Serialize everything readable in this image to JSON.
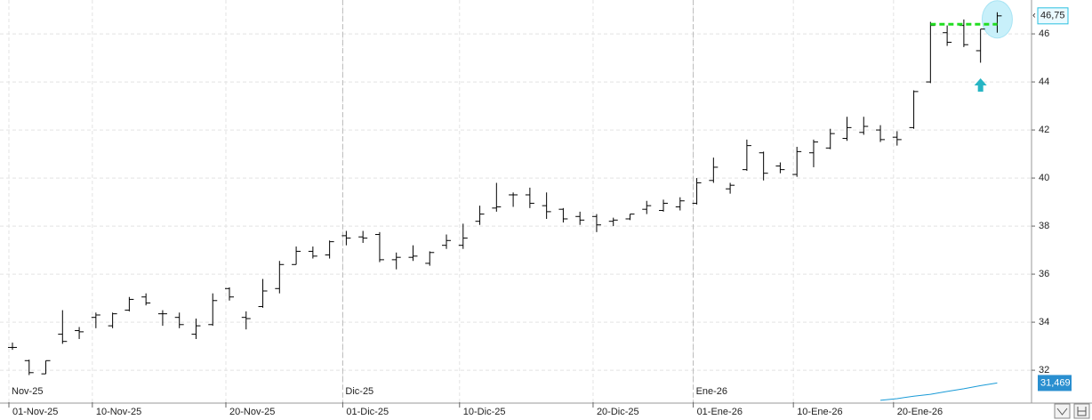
{
  "chart_data": {
    "type": "ohlc",
    "categories": [
      "01-Nov-25",
      null,
      null,
      null,
      null,
      "10-Nov-25",
      null,
      null,
      null,
      null,
      null,
      null,
      null,
      "20-Nov-25",
      null,
      null,
      null,
      null,
      null,
      null,
      "01-Dic-25",
      null,
      null,
      null,
      null,
      null,
      null,
      "10-Dic-25",
      null,
      null,
      null,
      null,
      null,
      null,
      null,
      "20-Dic-25",
      null,
      null,
      null,
      null,
      null,
      "01-Ene-26",
      null,
      null,
      null,
      null,
      null,
      "10-Ene-26",
      null,
      null,
      null,
      null,
      null,
      "20-Ene-26",
      null,
      null,
      null,
      null,
      null,
      null
    ],
    "month_categories": [
      "Nov-25",
      null,
      null,
      null,
      null,
      null,
      null,
      null,
      null,
      null,
      null,
      null,
      null,
      null,
      null,
      null,
      null,
      null,
      null,
      null,
      "Dic-25",
      null,
      null,
      null,
      null,
      null,
      null,
      null,
      null,
      null,
      null,
      null,
      null,
      null,
      null,
      null,
      null,
      null,
      null,
      null,
      null,
      "Ene-26",
      null,
      null,
      null,
      null,
      null,
      null,
      null,
      null,
      null,
      null,
      null,
      null,
      null,
      null,
      null,
      null,
      null,
      null
    ],
    "open": [
      32.95,
      32.4,
      31.85,
      33.5,
      33.65,
      34.2,
      33.85,
      34.5,
      35.05,
      34.35,
      34.2,
      33.5,
      33.9,
      35.4,
      34.2,
      34.65,
      35.4,
      36.4,
      36.95,
      36.8,
      37.6,
      37.55,
      37.65,
      36.6,
      36.7,
      36.45,
      37.2,
      37.2,
      38.2,
      38.75,
      39.3,
      39.3,
      38.85,
      38.7,
      38.4,
      38.4,
      38.2,
      38.3,
      38.7,
      38.65,
      38.8,
      38.95,
      39.9,
      39.55,
      40.35,
      41.05,
      40.5,
      40.15,
      41.05,
      41.25,
      41.65,
      41.9,
      42.0,
      41.7,
      42.1,
      44.0,
      46.05,
      46.35,
      45.3,
      46.4
    ],
    "high": [
      33.15,
      32.44,
      32.4,
      34.5,
      33.8,
      34.4,
      34.4,
      35.05,
      35.2,
      34.5,
      34.4,
      34.15,
      35.2,
      35.45,
      34.45,
      35.8,
      36.55,
      37.15,
      37.15,
      37.4,
      37.8,
      37.8,
      37.75,
      36.9,
      37.2,
      36.95,
      37.65,
      38.1,
      38.85,
      39.8,
      39.4,
      39.6,
      39.4,
      38.75,
      38.6,
      38.5,
      38.35,
      38.5,
      39.05,
      39.1,
      39.2,
      40.0,
      40.85,
      39.8,
      41.6,
      41.1,
      40.65,
      41.3,
      41.6,
      42.05,
      42.55,
      42.55,
      42.2,
      41.95,
      43.65,
      46.5,
      46.35,
      46.6,
      46.2,
      46.9
    ],
    "low": [
      32.85,
      31.8,
      31.85,
      33.1,
      33.3,
      33.75,
      33.75,
      34.45,
      34.7,
      33.85,
      33.75,
      33.3,
      33.85,
      34.9,
      33.7,
      34.6,
      35.2,
      36.4,
      36.65,
      36.65,
      37.2,
      37.3,
      36.5,
      36.2,
      36.55,
      36.35,
      37.05,
      37.05,
      38.05,
      38.6,
      38.8,
      38.75,
      38.3,
      38.15,
      38.05,
      37.75,
      38.0,
      38.25,
      38.5,
      38.6,
      38.65,
      38.9,
      39.8,
      39.35,
      40.3,
      39.9,
      40.2,
      40.05,
      40.45,
      41.2,
      41.55,
      41.8,
      41.5,
      41.35,
      42.05,
      43.95,
      45.5,
      45.45,
      44.8,
      46.05
    ],
    "close": [
      32.95,
      31.9,
      32.4,
      33.2,
      33.6,
      34.3,
      34.35,
      34.95,
      34.8,
      34.35,
      33.9,
      33.85,
      34.9,
      35.05,
      34.15,
      35.3,
      36.4,
      36.95,
      36.75,
      37.35,
      37.5,
      37.5,
      36.6,
      36.7,
      36.75,
      36.9,
      37.4,
      37.5,
      38.5,
      38.8,
      39.3,
      38.95,
      38.6,
      38.3,
      38.25,
      38.05,
      38.25,
      38.5,
      38.85,
      38.95,
      39.05,
      39.8,
      40.45,
      39.7,
      41.35,
      40.2,
      40.35,
      41.1,
      41.5,
      41.85,
      42.1,
      42.15,
      41.6,
      41.6,
      43.6,
      46.35,
      45.65,
      45.55,
      46.2,
      46.75
    ],
    "color": "#000000",
    "ylim": [
      30.67,
      47.41
    ],
    "yticks": [
      32,
      34,
      36,
      38,
      40,
      42,
      44,
      46
    ],
    "grid": true,
    "last_price": {
      "value": 46.75,
      "label": "46,75"
    },
    "indicator": {
      "color": "#1a9bd7",
      "values": [
        null,
        null,
        null,
        null,
        null,
        null,
        null,
        null,
        null,
        null,
        null,
        null,
        null,
        null,
        null,
        null,
        null,
        null,
        null,
        null,
        null,
        null,
        null,
        null,
        null,
        null,
        null,
        null,
        null,
        null,
        null,
        null,
        null,
        null,
        null,
        null,
        null,
        null,
        null,
        null,
        null,
        null,
        null,
        null,
        null,
        null,
        null,
        null,
        null,
        null,
        null,
        null,
        30.75,
        30.82,
        30.92,
        31.0,
        31.12,
        31.23,
        31.36,
        31.469
      ],
      "last": {
        "value": 31.469,
        "label": "31,469"
      }
    },
    "level_line": {
      "value": 46.4,
      "color": "#22dd22"
    }
  }
}
